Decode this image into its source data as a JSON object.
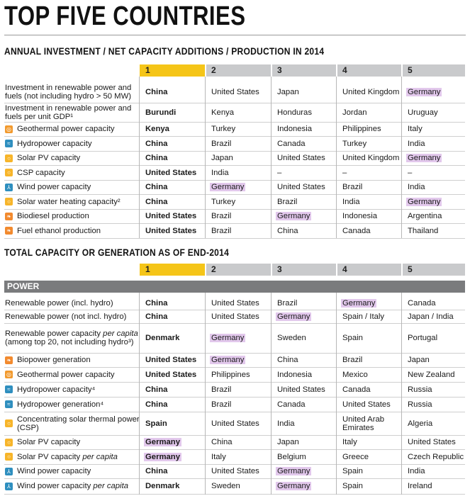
{
  "title": "TOP FIVE COUNTRIES",
  "section1": {
    "heading": "ANNUAL INVESTMENT / NET CAPACITY ADDITIONS / PRODUCTION IN 2014",
    "columns": [
      "1",
      "2",
      "3",
      "4",
      "5"
    ],
    "rows": [
      {
        "label": "Investment in renewable power and fuels (not including hydro > 50 MW)",
        "icon": "none",
        "cells": [
          "China",
          "United States",
          "Japan",
          "United Kingdom",
          "Germany"
        ],
        "highlight": [
          4
        ]
      },
      {
        "label": "Investment in renewable power and fuels per unit GDP¹",
        "icon": "none",
        "cells": [
          "Burundi",
          "Kenya",
          "Honduras",
          "Jordan",
          "Uruguay"
        ],
        "highlight": []
      },
      {
        "label": "Geothermal power capacity",
        "icon": "geothermal-icon",
        "cells": [
          "Kenya",
          "Turkey",
          "Indonesia",
          "Philippines",
          "Italy"
        ],
        "highlight": []
      },
      {
        "label": "Hydropower capacity",
        "icon": "hydropower-icon",
        "cells": [
          "China",
          "Brazil",
          "Canada",
          "Turkey",
          "India"
        ],
        "highlight": []
      },
      {
        "label": "Solar PV capacity",
        "icon": "solar-icon",
        "cells": [
          "China",
          "Japan",
          "United States",
          "United Kingdom",
          "Germany"
        ],
        "highlight": [
          4
        ]
      },
      {
        "label": "CSP capacity",
        "icon": "solar-icon",
        "cells": [
          "United States",
          "India",
          "–",
          "–",
          "–"
        ],
        "highlight": []
      },
      {
        "label": "Wind power capacity",
        "icon": "wind-icon",
        "cells": [
          "China",
          "Germany",
          "United States",
          "Brazil",
          "India"
        ],
        "highlight": [
          1
        ]
      },
      {
        "label": "Solar water heating capacity²",
        "icon": "solar-icon",
        "cells": [
          "China",
          "Turkey",
          "Brazil",
          "India",
          "Germany"
        ],
        "highlight": [
          4
        ]
      },
      {
        "label": "Biodiesel production",
        "icon": "bioenergy-icon",
        "cells": [
          "United States",
          "Brazil",
          "Germany",
          "Indonesia",
          "Argentina"
        ],
        "highlight": [
          2
        ]
      },
      {
        "label": "Fuel ethanol production",
        "icon": "bioenergy-icon",
        "cells": [
          "United States",
          "Brazil",
          "China",
          "Canada",
          "Thailand"
        ],
        "highlight": []
      }
    ]
  },
  "section2": {
    "heading": "TOTAL CAPACITY OR GENERATION AS OF END-2014",
    "columns": [
      "1",
      "2",
      "3",
      "4",
      "5"
    ],
    "band": "POWER",
    "rows": [
      {
        "label": "Renewable power (incl. hydro)",
        "icon": "none",
        "cells": [
          "China",
          "United States",
          "Brazil",
          "Germany",
          "Canada"
        ],
        "highlight": [
          3
        ]
      },
      {
        "label": "Renewable power (not incl. hydro)",
        "icon": "none",
        "cells": [
          "China",
          "United States",
          "Germany",
          "Spain / Italy",
          "Japan / India"
        ],
        "highlight": [
          2
        ]
      },
      {
        "label": "Renewable power capacity per capita (among top 20, not including hydro³)",
        "icon": "none",
        "cells": [
          "Denmark",
          "Germany",
          "Sweden",
          "Spain",
          "Portugal"
        ],
        "highlight": [
          1
        ]
      },
      {
        "label": "Biopower generation",
        "icon": "bioenergy-icon",
        "cells": [
          "United States",
          "Germany",
          "China",
          "Brazil",
          "Japan"
        ],
        "highlight": [
          1
        ]
      },
      {
        "label": "Geothermal power capacity",
        "icon": "geothermal-icon",
        "cells": [
          "United States",
          "Philippines",
          "Indonesia",
          "Mexico",
          "New Zealand"
        ],
        "highlight": []
      },
      {
        "label": "Hydropower capacity⁴",
        "icon": "hydropower-icon",
        "cells": [
          "China",
          "Brazil",
          "United States",
          "Canada",
          "Russia"
        ],
        "highlight": []
      },
      {
        "label": "Hydropower generation⁴",
        "icon": "hydropower-icon",
        "cells": [
          "China",
          "Brazil",
          "Canada",
          "United States",
          "Russia"
        ],
        "highlight": []
      },
      {
        "label": "Concentrating solar thermal power (CSP)",
        "icon": "solar-icon",
        "cells": [
          "Spain",
          "United States",
          "India",
          "United Arab Emirates",
          "Algeria"
        ],
        "highlight": []
      },
      {
        "label": "Solar PV capacity",
        "icon": "solar-icon",
        "cells": [
          "Germany",
          "China",
          "Japan",
          "Italy",
          "United States"
        ],
        "highlight": [
          0
        ]
      },
      {
        "label": "Solar PV capacity per capita",
        "icon": "solar-icon",
        "cells": [
          "Germany",
          "Italy",
          "Belgium",
          "Greece",
          "Czech Republic"
        ],
        "highlight": [
          0
        ]
      },
      {
        "label": "Wind power capacity",
        "icon": "wind-icon",
        "cells": [
          "China",
          "United States",
          "Germany",
          "Spain",
          "India"
        ],
        "highlight": [
          2
        ]
      },
      {
        "label": "Wind power capacity per capita",
        "icon": "wind-icon",
        "cells": [
          "Denmark",
          "Sweden",
          "Germany",
          "Spain",
          "Ireland"
        ],
        "highlight": [
          2
        ]
      }
    ]
  },
  "icons": {
    "geothermal-icon": {
      "color": "#f29a2e",
      "glyph": "◎"
    },
    "hydropower-icon": {
      "color": "#2f8fbf",
      "glyph": "≈"
    },
    "solar-icon": {
      "color": "#f7b52a",
      "glyph": "○"
    },
    "wind-icon": {
      "color": "#2f8fbf",
      "glyph": "⅄"
    },
    "bioenergy-icon": {
      "color": "#f28a2e",
      "glyph": "❧"
    }
  },
  "colors": {
    "highlight": "#e2c8ec",
    "rank1_header": "#f5c518",
    "header": "#c9cacc",
    "band": "#7a7b7d"
  }
}
